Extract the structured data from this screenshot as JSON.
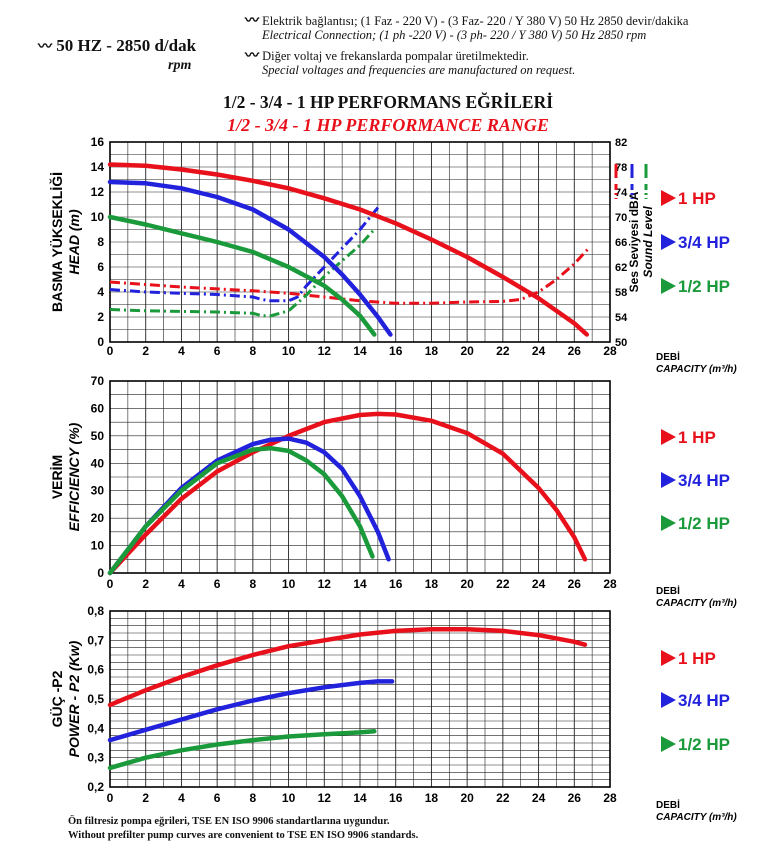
{
  "header": {
    "speed_main": "50 HZ - 2850 d/dak",
    "speed_unit": "rpm",
    "line1_tr": "Elektrik bağlantısı; (1 Faz - 220 V) - (3 Faz-   220 / Y 380 V) 50 Hz 2850 devir/dakika",
    "line2_en": "Electrical Connection; (1 ph -220 V) - (3 ph-   220 / Y 380 V) 50 Hz 2850 rpm",
    "line3_tr": "Diğer voltaj ve frekanslarda pompalar üretilmektedir.",
    "line4_en": "Special voltages and frequencies  are manufactured on request.",
    "bolt_glyph": "〰"
  },
  "titles": {
    "tr": "1/2 - 3/4 - 1 HP PERFORMANS EĞRİLERİ",
    "en": "1/2 - 3/4 - 1 HP PERFORMANCE RANGE"
  },
  "colors": {
    "hp1": "#e8101a",
    "hp34": "#2222dd",
    "hp12": "#1a9a3a"
  },
  "chart_data": [
    {
      "type": "line",
      "id": "head",
      "ylabel_tr": "BASMA YÜKSEKLİĞİ",
      "ylabel_en": "HEAD (m)",
      "xlabel_tr": "DEBİ",
      "xlabel_en": "CAPACITY (m³/h)",
      "xlim": [
        0,
        28
      ],
      "ylim": [
        0,
        16
      ],
      "xticks": [
        0,
        2,
        4,
        6,
        8,
        10,
        12,
        14,
        16,
        18,
        20,
        22,
        24,
        26,
        28
      ],
      "yticks": [
        0,
        2,
        4,
        6,
        8,
        10,
        12,
        14,
        16
      ],
      "y2label_tr": "Ses Seviyesi dBA",
      "y2label_en": "Sound Level",
      "y2lim": [
        50,
        82
      ],
      "y2ticks": [
        50,
        54,
        58,
        62,
        66,
        70,
        74,
        78,
        82
      ],
      "series": [
        {
          "name": "1 HP",
          "color_key": "hp1",
          "x": [
            0,
            2,
            4,
            6,
            8,
            10,
            12,
            14,
            16,
            18,
            20,
            22,
            24,
            26,
            26.7
          ],
          "y": [
            14.2,
            14.1,
            13.8,
            13.4,
            12.9,
            12.3,
            11.5,
            10.6,
            9.5,
            8.2,
            6.8,
            5.2,
            3.5,
            1.5,
            0.6
          ]
        },
        {
          "name": "3/4 HP",
          "color_key": "hp34",
          "x": [
            0,
            2,
            4,
            6,
            8,
            10,
            12,
            13,
            14,
            15,
            15.7
          ],
          "y": [
            12.8,
            12.7,
            12.3,
            11.6,
            10.6,
            9.0,
            6.8,
            5.4,
            3.8,
            2.0,
            0.6
          ]
        },
        {
          "name": "1/2 HP",
          "color_key": "hp12",
          "x": [
            0,
            2,
            4,
            6,
            8,
            10,
            12,
            13,
            14,
            14.8
          ],
          "y": [
            10.0,
            9.4,
            8.7,
            8.0,
            7.2,
            6.0,
            4.5,
            3.4,
            2.1,
            0.6
          ]
        }
      ],
      "sound_series": [
        {
          "name": "1 HP",
          "color_key": "hp1",
          "x": [
            0,
            2,
            4,
            6,
            8,
            10,
            12,
            14,
            16,
            18,
            20,
            22,
            23,
            24,
            25,
            26,
            26.8
          ],
          "y": [
            59.6,
            59.2,
            58.8,
            58.5,
            58.2,
            57.8,
            57.2,
            56.6,
            56.2,
            56.2,
            56.4,
            56.5,
            56.8,
            58.0,
            60.0,
            62.5,
            65.0
          ]
        },
        {
          "name": "3/4 HP",
          "color_key": "hp34",
          "x": [
            0,
            2,
            4,
            6,
            8,
            8.5,
            9,
            10,
            10.5,
            11,
            12,
            13,
            14,
            15
          ],
          "y": [
            58.4,
            58.0,
            57.8,
            57.6,
            57.2,
            56.8,
            56.6,
            56.6,
            57.2,
            59.0,
            62.0,
            65.0,
            68.0,
            71.5
          ]
        },
        {
          "name": "1/2 HP",
          "color_key": "hp12",
          "x": [
            0,
            2,
            4,
            6,
            8,
            8.5,
            9,
            10,
            11,
            12,
            13,
            14,
            14.8
          ],
          "y": [
            55.2,
            55.0,
            54.9,
            54.8,
            54.6,
            54.2,
            54.2,
            55.0,
            57.5,
            60.5,
            63.0,
            65.5,
            68.0
          ]
        }
      ]
    },
    {
      "type": "line",
      "id": "efficiency",
      "ylabel_tr": "VERİM",
      "ylabel_en": "EFFICIENCY (%)",
      "xlabel_tr": "DEBİ",
      "xlabel_en": "CAPACITY (m³/h)",
      "xlim": [
        0,
        28
      ],
      "ylim": [
        0,
        70
      ],
      "xticks": [
        0,
        2,
        4,
        6,
        8,
        10,
        12,
        14,
        16,
        18,
        20,
        22,
        24,
        26,
        28
      ],
      "yticks": [
        0,
        10,
        20,
        30,
        40,
        50,
        60,
        70
      ],
      "series": [
        {
          "name": "1 HP",
          "color_key": "hp1",
          "x": [
            0,
            2,
            4,
            6,
            8,
            10,
            12,
            14,
            15,
            16,
            18,
            20,
            22,
            24,
            25,
            26,
            26.6
          ],
          "y": [
            0,
            14,
            27,
            37,
            44,
            50,
            55,
            57.6,
            58,
            57.8,
            55.5,
            51,
            43.5,
            31,
            23,
            13,
            5
          ]
        },
        {
          "name": "3/4 HP",
          "color_key": "hp34",
          "x": [
            0,
            2,
            4,
            6,
            8,
            9,
            10,
            11,
            12,
            13,
            14,
            15,
            15.6
          ],
          "y": [
            0,
            17,
            31,
            41,
            47,
            48.6,
            49,
            47.5,
            44,
            38,
            28,
            15,
            5
          ]
        },
        {
          "name": "1/2 HP",
          "color_key": "hp12",
          "x": [
            0,
            2,
            4,
            6,
            8,
            9,
            10,
            11,
            12,
            13,
            14,
            14.7
          ],
          "y": [
            0,
            17,
            30,
            40,
            45,
            45.5,
            44.5,
            41,
            36,
            28,
            17,
            6
          ]
        }
      ]
    },
    {
      "type": "line",
      "id": "power",
      "ylabel_tr": "GÜÇ -P2",
      "ylabel_en": "POWER - P2 (Kw)",
      "xlabel_tr": "DEBİ",
      "xlabel_en": "CAPACITY (m³/h)",
      "xlim": [
        0,
        28
      ],
      "ylim": [
        0.2,
        0.8
      ],
      "xticks": [
        0,
        2,
        4,
        6,
        8,
        10,
        12,
        14,
        16,
        18,
        20,
        22,
        24,
        26,
        28
      ],
      "yticks": [
        0.2,
        0.3,
        0.4,
        0.5,
        0.6,
        0.7,
        0.8
      ],
      "ytick_labels": [
        "0,2",
        "0,3",
        "0,4",
        "0,5",
        "0,6",
        "0,7",
        "0,8"
      ],
      "series": [
        {
          "name": "1 HP",
          "color_key": "hp1",
          "x": [
            0,
            2,
            4,
            6,
            8,
            10,
            12,
            14,
            16,
            18,
            20,
            22,
            24,
            26,
            26.6
          ],
          "y": [
            0.48,
            0.53,
            0.575,
            0.615,
            0.65,
            0.68,
            0.7,
            0.72,
            0.732,
            0.738,
            0.738,
            0.732,
            0.718,
            0.695,
            0.685
          ]
        },
        {
          "name": "3/4 HP",
          "color_key": "hp34",
          "x": [
            0,
            2,
            4,
            6,
            8,
            10,
            12,
            14,
            15,
            15.8
          ],
          "y": [
            0.36,
            0.395,
            0.43,
            0.465,
            0.495,
            0.52,
            0.54,
            0.555,
            0.56,
            0.56
          ]
        },
        {
          "name": "1/2 HP",
          "color_key": "hp12",
          "x": [
            0,
            2,
            4,
            6,
            8,
            10,
            12,
            14,
            14.8
          ],
          "y": [
            0.265,
            0.3,
            0.325,
            0.345,
            0.36,
            0.372,
            0.38,
            0.386,
            0.39
          ]
        }
      ]
    }
  ],
  "legend": [
    {
      "label": "1 HP",
      "color_key": "hp1"
    },
    {
      "label": "3/4 HP",
      "color_key": "hp34"
    },
    {
      "label": "1/2 HP",
      "color_key": "hp12"
    }
  ],
  "footer": {
    "line1": "Ön filtresiz pompa eğrileri, TSE EN ISO 9906 standartlarına uygundur.",
    "line2": "Without prefilter pump curves are convenient to TSE EN ISO 9906 standards."
  }
}
